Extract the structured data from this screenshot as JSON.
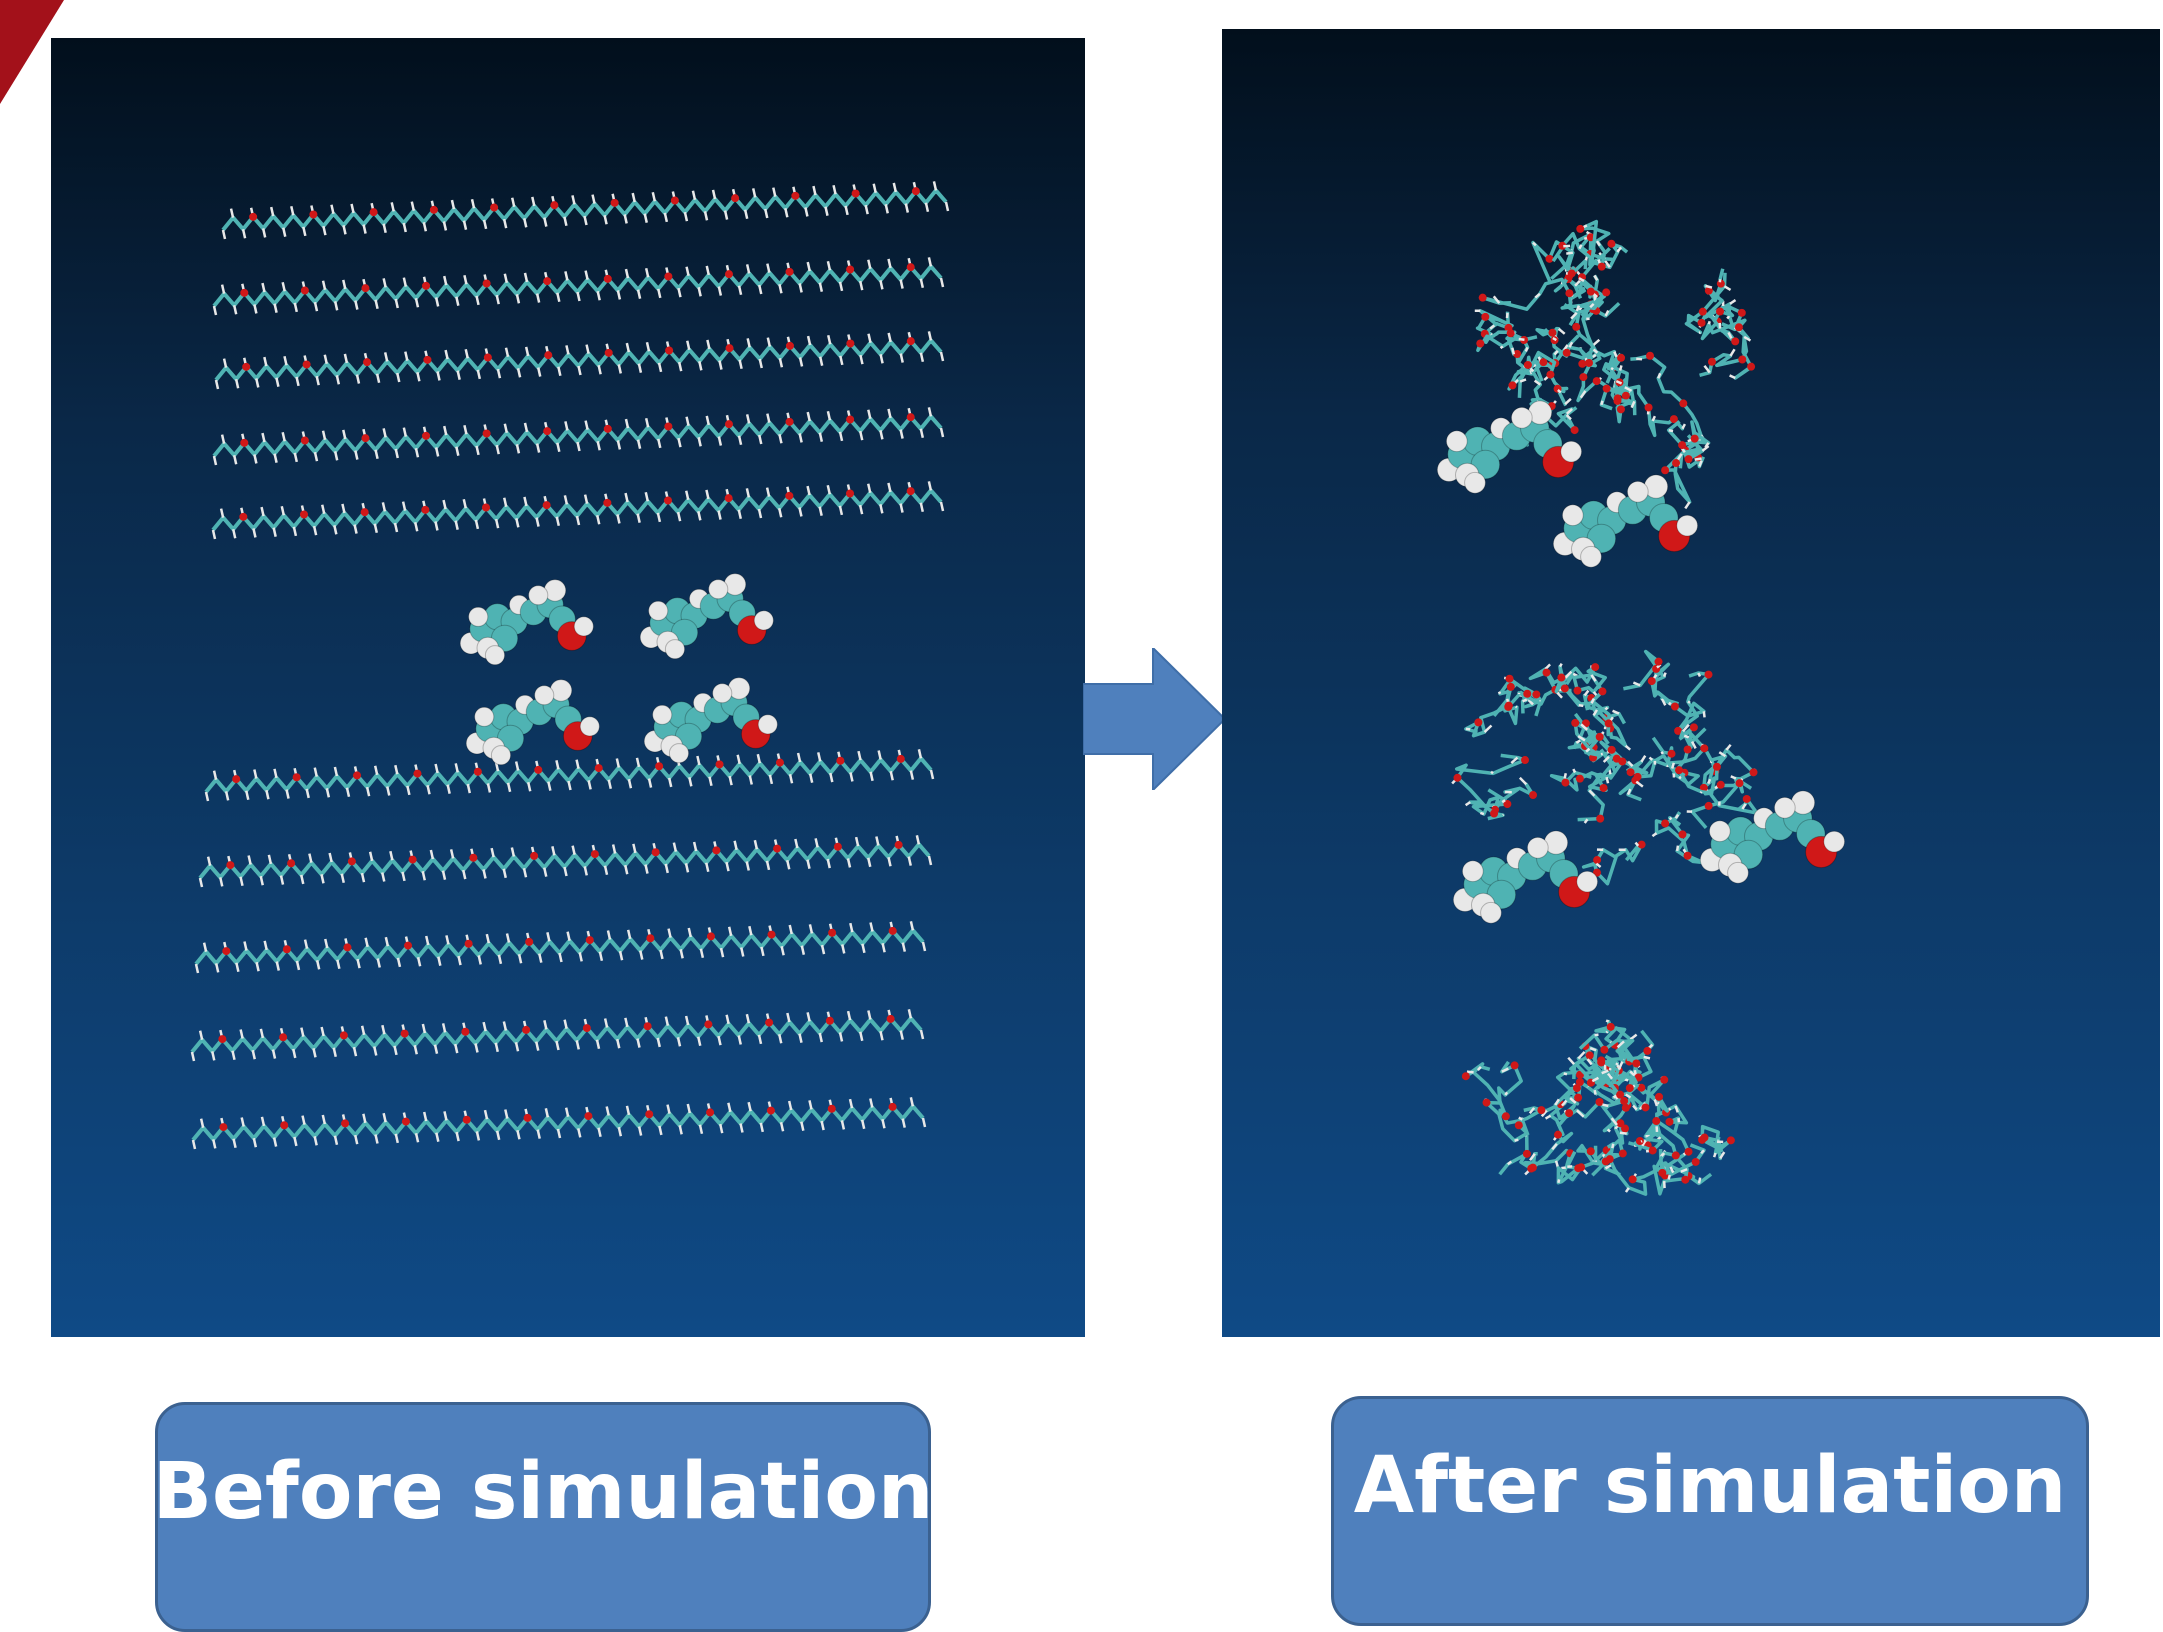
{
  "labels": {
    "before": "Before simulation",
    "after": "After simulation"
  },
  "icons": {
    "transition_arrow": "right-arrow-icon",
    "corner_mark": "corner-triangle"
  },
  "colors": {
    "label_fill": "#4f80bd",
    "label_border": "#3b6190",
    "label_text": "#ffffff",
    "arrow": "#4f80bd",
    "corner_mark": "#a3111a",
    "carbon": "#4fb3b3",
    "oxygen": "#d01818",
    "hydrogen": "#e8e8e8"
  }
}
